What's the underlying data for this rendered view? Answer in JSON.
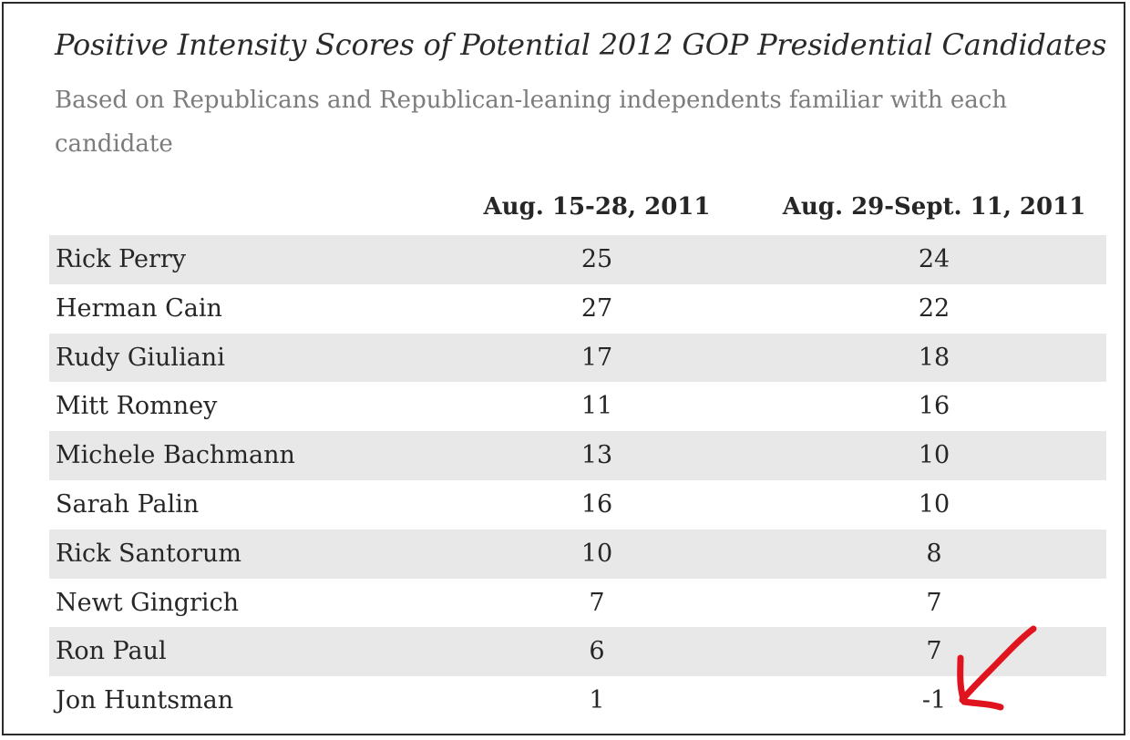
{
  "title": "Positive Intensity Scores of Potential 2012 GOP Presidential Candidates",
  "subtitle": "Based on Republicans and Republican-leaning independents familiar with each candidate",
  "columns": [
    "Aug. 15-28, 2011",
    "Aug. 29-Sept. 11, 2011"
  ],
  "rows": [
    {
      "name": "Rick Perry",
      "v1": "25",
      "v2": "24"
    },
    {
      "name": "Herman Cain",
      "v1": "27",
      "v2": "22"
    },
    {
      "name": "Rudy Giuliani",
      "v1": "17",
      "v2": "18"
    },
    {
      "name": "Mitt Romney",
      "v1": "11",
      "v2": "16"
    },
    {
      "name": "Michele Bachmann",
      "v1": "13",
      "v2": "10"
    },
    {
      "name": "Sarah Palin",
      "v1": "16",
      "v2": "10"
    },
    {
      "name": "Rick Santorum",
      "v1": "10",
      "v2": "8"
    },
    {
      "name": "Newt Gingrich",
      "v1": "7",
      "v2": "7"
    },
    {
      "name": "Ron Paul",
      "v1": "6",
      "v2": "7"
    },
    {
      "name": "Jon Huntsman",
      "v1": "1",
      "v2": "-1"
    }
  ],
  "annotation": {
    "icon": "red-arrow-icon",
    "color": "#e0141e"
  },
  "colors": {
    "row_shade": "#e8e8e8",
    "subtitle": "#7c7c7c",
    "text": "#262626"
  },
  "chart_data": {
    "type": "table",
    "title": "Positive Intensity Scores of Potential 2012 GOP Presidential Candidates",
    "subtitle": "Based on Republicans and Republican-leaning independents familiar with each candidate",
    "columns": [
      "Aug. 15-28, 2011",
      "Aug. 29-Sept. 11, 2011"
    ],
    "categories": [
      "Rick Perry",
      "Herman Cain",
      "Rudy Giuliani",
      "Mitt Romney",
      "Michele Bachmann",
      "Sarah Palin",
      "Rick Santorum",
      "Newt Gingrich",
      "Ron Paul",
      "Jon Huntsman"
    ],
    "series": [
      {
        "name": "Aug. 15-28, 2011",
        "values": [
          25,
          27,
          17,
          11,
          13,
          16,
          10,
          7,
          6,
          1
        ]
      },
      {
        "name": "Aug. 29-Sept. 11, 2011",
        "values": [
          24,
          22,
          18,
          16,
          10,
          10,
          8,
          7,
          7,
          -1
        ]
      }
    ]
  }
}
